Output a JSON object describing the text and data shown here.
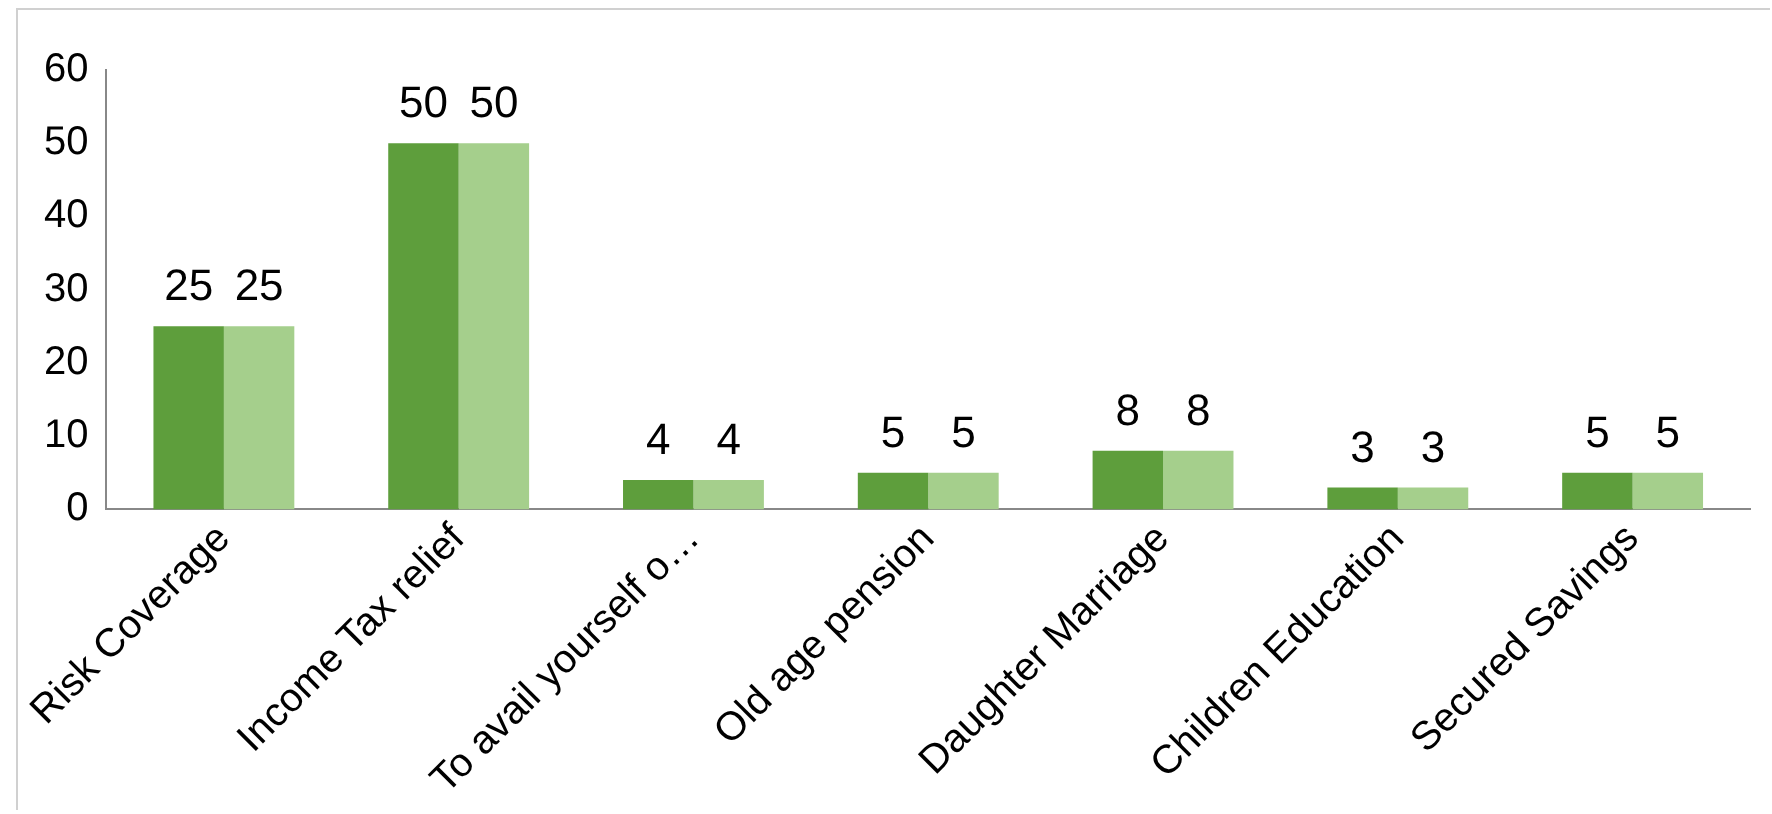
{
  "chart_data": {
    "type": "bar",
    "categories": [
      "Risk Coverage",
      "Income Tax relief",
      "To avail yourself o…",
      "Old age pension",
      "Daughter Marriage",
      "Children Education",
      "Secured Savings"
    ],
    "series": [
      {
        "color": "#5e9e3c",
        "values": [
          25,
          50,
          4,
          5,
          8,
          3,
          5
        ]
      },
      {
        "color": "#a5cf8c",
        "values": [
          25,
          50,
          4,
          5,
          8,
          3,
          5
        ]
      }
    ],
    "ylim": [
      0,
      60
    ],
    "yticks": [
      0,
      10,
      20,
      30,
      40,
      50,
      60
    ],
    "grid": false,
    "legend": false,
    "data_labels": true
  }
}
